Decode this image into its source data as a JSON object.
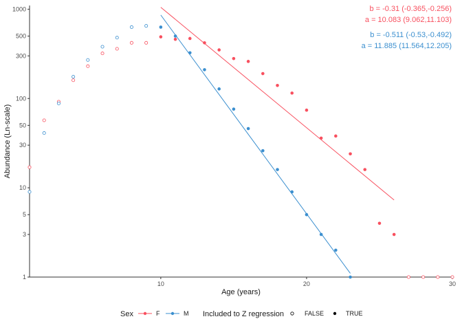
{
  "chart_data": {
    "type": "scatter",
    "xlabel": "Age (years)",
    "ylabel": "Abundance (Ln-scale)",
    "x_scale": "linear",
    "y_scale": "log",
    "xlim": [
      1,
      30
    ],
    "ylim": [
      1,
      1100
    ],
    "x_ticks": [
      10,
      20,
      30
    ],
    "y_ticks": [
      1,
      3,
      5,
      10,
      30,
      50,
      100,
      300,
      500,
      1000
    ],
    "colors": {
      "F": "#f8505f",
      "M": "#3b8fcf"
    },
    "series": [
      {
        "name": "F",
        "label": "F",
        "color": "#f8505f",
        "points": [
          {
            "age": 1,
            "abundance": 17,
            "included": false
          },
          {
            "age": 2,
            "abundance": 57,
            "included": false
          },
          {
            "age": 3,
            "abundance": 92,
            "included": false
          },
          {
            "age": 4,
            "abundance": 160,
            "included": false
          },
          {
            "age": 5,
            "abundance": 230,
            "included": false
          },
          {
            "age": 6,
            "abundance": 320,
            "included": false
          },
          {
            "age": 7,
            "abundance": 360,
            "included": false
          },
          {
            "age": 8,
            "abundance": 420,
            "included": false
          },
          {
            "age": 9,
            "abundance": 420,
            "included": false
          },
          {
            "age": 10,
            "abundance": 490,
            "included": true
          },
          {
            "age": 11,
            "abundance": 460,
            "included": true
          },
          {
            "age": 12,
            "abundance": 470,
            "included": true
          },
          {
            "age": 13,
            "abundance": 420,
            "included": true
          },
          {
            "age": 14,
            "abundance": 350,
            "included": true
          },
          {
            "age": 15,
            "abundance": 280,
            "included": true
          },
          {
            "age": 16,
            "abundance": 260,
            "included": true
          },
          {
            "age": 17,
            "abundance": 190,
            "included": true
          },
          {
            "age": 18,
            "abundance": 140,
            "included": true
          },
          {
            "age": 19,
            "abundance": 115,
            "included": true
          },
          {
            "age": 20,
            "abundance": 74,
            "included": true
          },
          {
            "age": 21,
            "abundance": 36,
            "included": true
          },
          {
            "age": 22,
            "abundance": 38,
            "included": true
          },
          {
            "age": 23,
            "abundance": 24,
            "included": true
          },
          {
            "age": 24,
            "abundance": 16,
            "included": true
          },
          {
            "age": 25,
            "abundance": 4,
            "included": true
          },
          {
            "age": 26,
            "abundance": 3,
            "included": true
          },
          {
            "age": 27,
            "abundance": 1,
            "included": false
          },
          {
            "age": 28,
            "abundance": 1,
            "included": false
          },
          {
            "age": 29,
            "abundance": 1,
            "included": false
          },
          {
            "age": 30,
            "abundance": 1,
            "included": false
          }
        ],
        "regression": {
          "age_range": [
            10,
            26
          ],
          "abundance_at_start": 1050,
          "abundance_at_end": 7.3
        }
      },
      {
        "name": "M",
        "label": "M",
        "color": "#3b8fcf",
        "points": [
          {
            "age": 1,
            "abundance": 9,
            "included": false
          },
          {
            "age": 2,
            "abundance": 41,
            "included": false
          },
          {
            "age": 3,
            "abundance": 88,
            "included": false
          },
          {
            "age": 4,
            "abundance": 175,
            "included": false
          },
          {
            "age": 5,
            "abundance": 270,
            "included": false
          },
          {
            "age": 6,
            "abundance": 380,
            "included": false
          },
          {
            "age": 7,
            "abundance": 480,
            "included": false
          },
          {
            "age": 8,
            "abundance": 630,
            "included": false
          },
          {
            "age": 9,
            "abundance": 650,
            "included": false
          },
          {
            "age": 10,
            "abundance": 630,
            "included": true
          },
          {
            "age": 11,
            "abundance": 500,
            "included": true
          },
          {
            "age": 12,
            "abundance": 325,
            "included": true
          },
          {
            "age": 13,
            "abundance": 210,
            "included": true
          },
          {
            "age": 14,
            "abundance": 128,
            "included": true
          },
          {
            "age": 15,
            "abundance": 76,
            "included": true
          },
          {
            "age": 16,
            "abundance": 46,
            "included": true
          },
          {
            "age": 17,
            "abundance": 26,
            "included": true
          },
          {
            "age": 18,
            "abundance": 16,
            "included": true
          },
          {
            "age": 19,
            "abundance": 9,
            "included": true
          },
          {
            "age": 20,
            "abundance": 5,
            "included": true
          },
          {
            "age": 21,
            "abundance": 3,
            "included": true
          },
          {
            "age": 22,
            "abundance": 2,
            "included": true
          },
          {
            "age": 23,
            "abundance": 1,
            "included": true
          }
        ],
        "regression": {
          "age_range": [
            10,
            23
          ],
          "abundance_at_start": 860,
          "abundance_at_end": 1.1
        }
      }
    ],
    "annotations": [
      {
        "series": "F",
        "line1": "b = -0.31 (-0.365,-0.256)",
        "line2": "a = 10.083 (9.062,11.103)"
      },
      {
        "series": "M",
        "line1": "b = -0.511 (-0.53,-0.492)",
        "line2": "a = 11.885 (11.564,12.205)"
      }
    ],
    "legend": {
      "position": "bottom",
      "sex_title": "Sex",
      "sex_items": [
        "F",
        "M"
      ],
      "included_title": "Included to Z regression",
      "included_items": [
        "FALSE",
        "TRUE"
      ]
    }
  }
}
